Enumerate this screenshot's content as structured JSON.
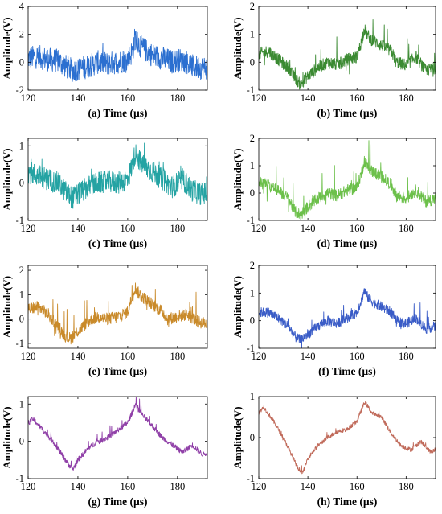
{
  "chart_data": [
    {
      "type": "line",
      "xlabel": "(a) Time (µs)",
      "ylabel": "Amplitude(V)",
      "xlim": [
        120,
        192
      ],
      "ylim": [
        -2,
        4
      ],
      "xticks": [
        120,
        140,
        160,
        180
      ],
      "yticks": [
        -2,
        0,
        2,
        4
      ],
      "series": [
        {
          "color": "#2b6fd0",
          "noise": 0.85,
          "spikes": 0.55,
          "x": [
            120,
            124,
            128,
            132,
            136,
            138,
            140,
            144,
            148,
            152,
            156,
            160,
            162,
            163,
            164,
            166,
            170,
            174,
            178,
            182,
            186,
            190,
            192
          ],
          "y": [
            0.3,
            0.4,
            0.2,
            0.1,
            -0.4,
            -0.6,
            -0.5,
            -0.3,
            0.0,
            -0.1,
            0.0,
            0.2,
            0.8,
            1.8,
            1.4,
            1.0,
            0.5,
            0.3,
            0.0,
            0.2,
            -0.3,
            -0.4,
            -0.4
          ]
        }
      ]
    },
    {
      "type": "line",
      "xlabel": "(b) Time (µs)",
      "ylabel": "Amplitude(V)",
      "xlim": [
        120,
        192
      ],
      "ylim": [
        -1,
        2
      ],
      "xticks": [
        120,
        140,
        160,
        180
      ],
      "yticks": [
        -1,
        0,
        1,
        2
      ],
      "series": [
        {
          "color": "#3b8a32",
          "noise": 0.22,
          "spikes": 0.7,
          "x": [
            120,
            124,
            128,
            132,
            135,
            137,
            140,
            144,
            148,
            152,
            156,
            160,
            162,
            163,
            164,
            166,
            170,
            174,
            176,
            180,
            184,
            188,
            192
          ],
          "y": [
            0.3,
            0.4,
            0.1,
            -0.2,
            -0.6,
            -0.8,
            -0.5,
            -0.2,
            0.0,
            -0.1,
            0.1,
            0.2,
            0.8,
            1.2,
            1.0,
            0.8,
            0.6,
            0.4,
            0.0,
            -0.1,
            0.2,
            -0.3,
            -0.2
          ]
        }
      ]
    },
    {
      "type": "line",
      "xlabel": "(c) Time (µs)",
      "ylabel": "Amplitude(V)",
      "xlim": [
        120,
        192
      ],
      "ylim": [
        -1,
        1.2
      ],
      "xticks": [
        120,
        140,
        160,
        180
      ],
      "yticks": [
        -1,
        0,
        1
      ],
      "series": [
        {
          "color": "#24a3a3",
          "noise": 0.3,
          "spikes": 0.45,
          "x": [
            120,
            124,
            128,
            132,
            136,
            138,
            140,
            144,
            148,
            152,
            156,
            160,
            162,
            163,
            164,
            166,
            170,
            174,
            178,
            182,
            186,
            190,
            192
          ],
          "y": [
            0.3,
            0.2,
            0.1,
            0.0,
            -0.3,
            -0.4,
            -0.3,
            -0.1,
            0.0,
            0.05,
            0.0,
            0.1,
            0.5,
            0.8,
            0.7,
            0.5,
            0.3,
            0.1,
            -0.1,
            0.1,
            -0.2,
            -0.3,
            -0.25
          ]
        }
      ]
    },
    {
      "type": "line",
      "xlabel": "(d) Time (µs)",
      "ylabel": "Amplitude(V)",
      "xlim": [
        120,
        192
      ],
      "ylim": [
        -1,
        2
      ],
      "xticks": [
        120,
        140,
        160,
        180
      ],
      "yticks": [
        -1,
        0,
        1,
        2
      ],
      "series": [
        {
          "color": "#6cc04a",
          "noise": 0.22,
          "spikes": 0.7,
          "x": [
            120,
            124,
            128,
            132,
            135,
            137,
            140,
            144,
            148,
            152,
            156,
            160,
            162,
            163,
            164,
            166,
            170,
            174,
            176,
            180,
            184,
            188,
            192
          ],
          "y": [
            0.4,
            0.3,
            0.1,
            -0.2,
            -0.7,
            -0.8,
            -0.5,
            -0.2,
            0.0,
            -0.1,
            0.1,
            0.2,
            0.8,
            1.2,
            1.0,
            0.8,
            0.6,
            0.3,
            -0.1,
            -0.2,
            0.1,
            -0.3,
            -0.2
          ]
        }
      ]
    },
    {
      "type": "line",
      "xlabel": "(e) Time (µs)",
      "ylabel": "Amplitude(V)",
      "xlim": [
        120,
        192
      ],
      "ylim": [
        -1.2,
        2.2
      ],
      "xticks": [
        120,
        140,
        160,
        180
      ],
      "yticks": [
        -1,
        0,
        1,
        2
      ],
      "series": [
        {
          "color": "#c98a2a",
          "noise": 0.25,
          "spikes": 0.75,
          "x": [
            120,
            124,
            128,
            132,
            135,
            137,
            140,
            144,
            148,
            152,
            156,
            160,
            162,
            163,
            164,
            166,
            170,
            174,
            176,
            180,
            184,
            188,
            192
          ],
          "y": [
            0.4,
            0.5,
            0.2,
            -0.3,
            -0.7,
            -0.8,
            -0.5,
            -0.1,
            0.1,
            0.0,
            0.1,
            0.3,
            1.0,
            1.3,
            1.1,
            0.9,
            0.6,
            0.3,
            0.0,
            0.1,
            0.2,
            -0.1,
            -0.2
          ]
        }
      ]
    },
    {
      "type": "line",
      "xlabel": "(f) Time (µs)",
      "ylabel": "Amplitude(V)",
      "xlim": [
        120,
        192
      ],
      "ylim": [
        -1,
        2
      ],
      "xticks": [
        120,
        140,
        160,
        180
      ],
      "yticks": [
        -1,
        0,
        1,
        2
      ],
      "series": [
        {
          "color": "#3a5cc7",
          "noise": 0.18,
          "spikes": 0.55,
          "x": [
            120,
            124,
            128,
            132,
            135,
            137,
            140,
            144,
            148,
            152,
            156,
            160,
            162,
            163,
            164,
            166,
            170,
            174,
            176,
            180,
            184,
            188,
            192
          ],
          "y": [
            0.3,
            0.3,
            0.1,
            -0.2,
            -0.6,
            -0.7,
            -0.5,
            -0.2,
            0.0,
            -0.1,
            0.1,
            0.3,
            0.8,
            1.1,
            0.9,
            0.7,
            0.5,
            0.3,
            0.0,
            -0.1,
            0.1,
            -0.3,
            -0.2
          ]
        }
      ]
    },
    {
      "type": "line",
      "xlabel": "(g) Time (µs)",
      "ylabel": "Amplitude(V)",
      "xlim": [
        120,
        192
      ],
      "ylim": [
        -1,
        1.2
      ],
      "xticks": [
        120,
        140,
        160,
        180
      ],
      "yticks": [
        -1,
        0,
        1
      ],
      "series": [
        {
          "color": "#9040a8",
          "noise": 0.07,
          "spikes": 0.2,
          "x": [
            120,
            122,
            126,
            130,
            134,
            136,
            138,
            140,
            144,
            148,
            152,
            156,
            160,
            162,
            163,
            164,
            166,
            170,
            174,
            178,
            182,
            186,
            190,
            192
          ],
          "y": [
            0.5,
            0.6,
            0.3,
            0.0,
            -0.4,
            -0.6,
            -0.75,
            -0.5,
            -0.2,
            0.0,
            0.1,
            0.3,
            0.5,
            0.8,
            1.0,
            0.9,
            0.7,
            0.4,
            0.1,
            -0.1,
            -0.3,
            -0.1,
            -0.35,
            -0.3
          ]
        }
      ]
    },
    {
      "type": "line",
      "xlabel": "(h) Time (µs)",
      "ylabel": "Amplitude(V)",
      "xlim": [
        120,
        192
      ],
      "ylim": [
        -1,
        1
      ],
      "xticks": [
        120,
        140,
        160,
        180
      ],
      "yticks": [
        -1,
        0,
        1
      ],
      "series": [
        {
          "color": "#c06a5a",
          "noise": 0.05,
          "spikes": 0.1,
          "x": [
            120,
            122,
            126,
            130,
            134,
            136,
            138,
            140,
            144,
            148,
            152,
            156,
            160,
            162,
            163,
            164,
            166,
            170,
            174,
            178,
            182,
            186,
            190,
            192
          ],
          "y": [
            0.6,
            0.75,
            0.4,
            0.0,
            -0.5,
            -0.75,
            -0.85,
            -0.5,
            -0.2,
            0.0,
            0.15,
            0.2,
            0.4,
            0.7,
            0.85,
            0.8,
            0.6,
            0.5,
            0.1,
            -0.2,
            -0.3,
            -0.1,
            -0.35,
            -0.3
          ]
        }
      ]
    }
  ]
}
